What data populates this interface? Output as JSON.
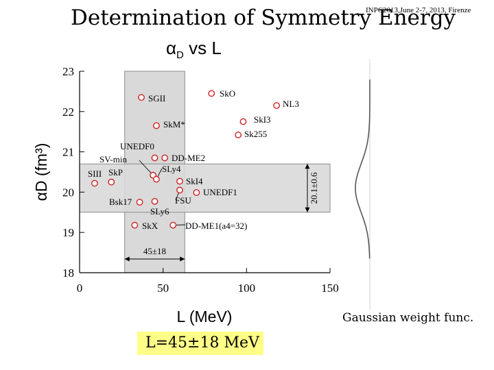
{
  "slide": {
    "title": "Determination of Symmetry Energy",
    "conference_note": "INPC2013,June 2-7, 2013, Firenze",
    "chart_heading": "α",
    "chart_heading_sub": "D",
    "chart_heading_suffix": " vs L",
    "gaussian_label": "Gaussian weight func.",
    "result": "L=45±18 MeV"
  },
  "chart_data": {
    "type": "scatter",
    "title": "αD vs L",
    "xlabel": "L (MeV)",
    "ylabel": "αD (fm³)",
    "xlim": [
      0,
      150
    ],
    "ylim": [
      18,
      23
    ],
    "xticks": [
      0,
      50,
      100,
      150
    ],
    "yticks": [
      18,
      19,
      20,
      21,
      22,
      23
    ],
    "colors": {
      "marker": "#cc2222",
      "band": "#d9d9d9",
      "axis": "#000000"
    },
    "points": [
      {
        "label": "SGII",
        "x": 37,
        "y": 22.35
      },
      {
        "label": "SkO",
        "x": 79,
        "y": 22.45
      },
      {
        "label": "NL3",
        "x": 118,
        "y": 22.15
      },
      {
        "label": "SkM*",
        "x": 46,
        "y": 21.65
      },
      {
        "label": "SkI3",
        "x": 98,
        "y": 21.75
      },
      {
        "label": "Sk255",
        "x": 95,
        "y": 21.42
      },
      {
        "label": "UNEDF0",
        "x": 45,
        "y": 20.85
      },
      {
        "label": "DD-ME2",
        "x": 51,
        "y": 20.85
      },
      {
        "label": "SV-min",
        "x": 44,
        "y": 20.42
      },
      {
        "label": "SLy4",
        "x": 46,
        "y": 20.32
      },
      {
        "label": "SkI4",
        "x": 60,
        "y": 20.27
      },
      {
        "label": "SIII",
        "x": 9,
        "y": 20.22
      },
      {
        "label": "SkP",
        "x": 19,
        "y": 20.25
      },
      {
        "label": "FSU",
        "x": 60,
        "y": 20.05
      },
      {
        "label": "UNEDF1",
        "x": 70,
        "y": 19.99
      },
      {
        "label": "Bsk17",
        "x": 36,
        "y": 19.75
      },
      {
        "label": "SLy6",
        "x": 45,
        "y": 19.77
      },
      {
        "label": "SkX",
        "x": 33,
        "y": 19.18
      },
      {
        "label": "DD-ME1(a4=32)",
        "x": 56,
        "y": 19.18
      }
    ],
    "bands": {
      "L": {
        "center": 45,
        "error": 18,
        "label": "45±18",
        "range": [
          27,
          63
        ]
      },
      "alphaD": {
        "center": 20.1,
        "error": 0.6,
        "label": "20.1±0.6",
        "range": [
          19.5,
          20.7
        ]
      }
    },
    "gaussian": {
      "center": 20.1,
      "sigma": 0.6,
      "label": "Gaussian weight func."
    }
  }
}
